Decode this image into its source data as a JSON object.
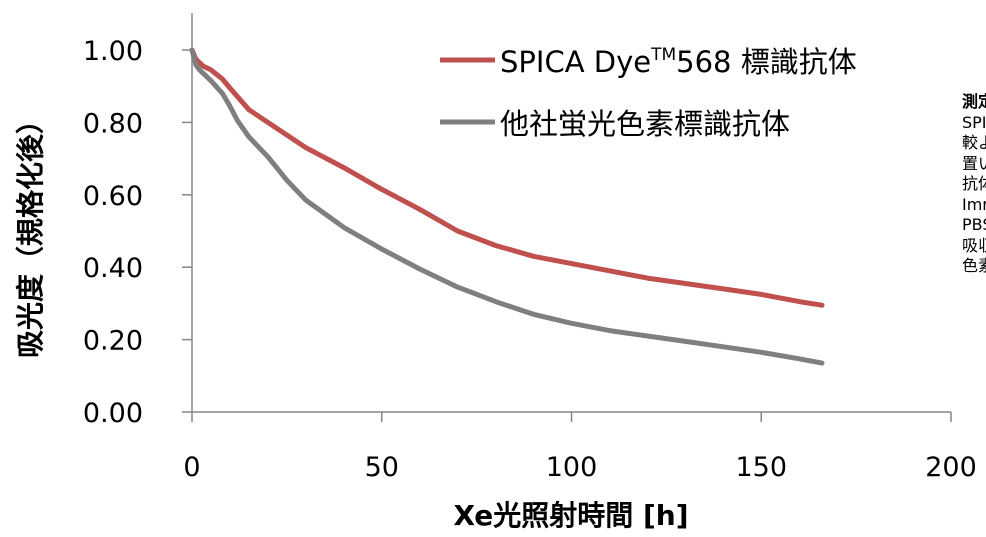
{
  "chart_data": {
    "type": "line",
    "xlabel": "Xe光照射時間 [h]",
    "ylabel": "吸光度（規格化後）",
    "xlim": [
      0,
      200
    ],
    "ylim": [
      0,
      1.0
    ],
    "x_ticks": [
      "0",
      "50",
      "100",
      "150",
      "200"
    ],
    "y_ticks": [
      "0.00",
      "0.20",
      "0.40",
      "0.60",
      "0.80",
      "1.00"
    ],
    "grid": false,
    "legend_position": "top-right",
    "series": [
      {
        "name_main": "SPICA Dye",
        "name_sup": "TM",
        "name_tail": "568 標識抗体",
        "color": "#c0504d",
        "x": [
          0,
          1,
          2,
          3,
          5,
          8,
          10,
          15,
          20,
          30,
          40,
          50,
          60,
          70,
          80,
          90,
          100,
          110,
          120,
          130,
          140,
          150,
          160,
          166
        ],
        "y": [
          1.0,
          0.975,
          0.965,
          0.955,
          0.945,
          0.92,
          0.895,
          0.835,
          0.8,
          0.73,
          0.675,
          0.615,
          0.56,
          0.5,
          0.46,
          0.43,
          0.41,
          0.39,
          0.37,
          0.355,
          0.34,
          0.325,
          0.305,
          0.295
        ]
      },
      {
        "name": "他社蛍光色素標識抗体",
        "color": "#7f7f7f",
        "x": [
          0,
          1,
          2,
          3,
          5,
          8,
          10,
          12,
          15,
          20,
          25,
          30,
          40,
          50,
          60,
          70,
          80,
          90,
          100,
          110,
          120,
          130,
          140,
          150,
          160,
          166
        ],
        "y": [
          1.0,
          0.96,
          0.945,
          0.935,
          0.915,
          0.88,
          0.845,
          0.805,
          0.76,
          0.705,
          0.64,
          0.585,
          0.51,
          0.45,
          0.395,
          0.345,
          0.305,
          0.27,
          0.245,
          0.225,
          0.21,
          0.195,
          0.18,
          0.165,
          0.147,
          0.135
        ]
      }
    ]
  },
  "notes": {
    "title": "測定",
    "lines": [
      "SPI",
      "較よ",
      "置い",
      "抗体",
      "Imr",
      "PBS",
      "吸収",
      "色素"
    ]
  }
}
